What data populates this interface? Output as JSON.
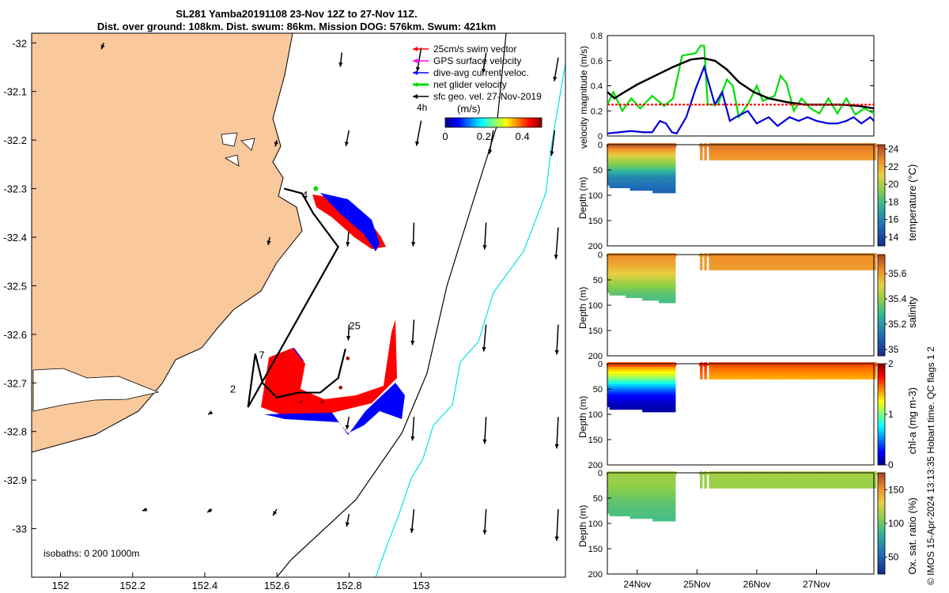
{
  "header": {
    "title_line1": "SL281 Yamba20191108 23-Nov 12Z to 27-Nov 11Z.",
    "title_line2": "Dist. over ground: 108km. Dist. swum: 86km. Mission DOG: 576km. Swum: 421km"
  },
  "credit": "© IMOS 15-Apr-2024 13:13:35 Hobart time. QC flags 1 2",
  "colors": {
    "land": "#f9c89b",
    "swim_vector": "#ff0000",
    "gps_velocity": "#ff00ff",
    "current": "#0000ff",
    "net_velocity": "#00dd00",
    "geostrophic": "#000000",
    "isobath_200": "#000000",
    "isobath_1000": "#00e5e5"
  },
  "chart_data": [
    {
      "type": "map",
      "title": "",
      "x_ticks": [
        "152",
        "152.2",
        "152.4",
        "152.6",
        "152.8",
        "153"
      ],
      "y_ticks": [
        "-32",
        "-32.1",
        "-32.2",
        "-32.3",
        "-32.4",
        "-32.5",
        "-32.6",
        "-32.7",
        "-32.8",
        "-32.9",
        "-33"
      ],
      "xlim": [
        151.92,
        153.4
      ],
      "ylim": [
        -33.1,
        -31.98
      ],
      "legend": {
        "placement": "top-right",
        "entries": [
          "25cm/s swim vector",
          "GPS surface velocity",
          "dive-avg current veloc.",
          "net glider velocity",
          "sfc geo. vel. 27-Nov-2019"
        ],
        "interval_label": "4h"
      },
      "colorbar": {
        "label": "(m/s)",
        "ticks": [
          "0",
          "0.2",
          "0.4"
        ],
        "range": [
          0,
          0.5
        ]
      },
      "isobath_label": "isobaths: 0   200  1000m",
      "track_labels": [
        {
          "text": "4",
          "lon": 152.67,
          "lat": -32.32
        },
        {
          "text": "25",
          "lon": 152.8,
          "lat": -32.59
        },
        {
          "text": "7",
          "lon": 152.55,
          "lat": -32.65
        },
        {
          "text": "2",
          "lon": 152.47,
          "lat": -32.72
        }
      ],
      "glider_track": [
        [
          152.62,
          -32.3
        ],
        [
          152.67,
          -32.31
        ],
        [
          152.7,
          -32.35
        ],
        [
          152.74,
          -32.39
        ],
        [
          152.77,
          -32.42
        ],
        [
          152.52,
          -32.75
        ],
        [
          152.54,
          -32.64
        ],
        [
          152.56,
          -32.7
        ],
        [
          152.6,
          -32.73
        ],
        [
          152.66,
          -32.72
        ],
        [
          152.72,
          -32.72
        ],
        [
          152.77,
          -32.69
        ],
        [
          152.79,
          -32.63
        ]
      ],
      "geostrophic_arrows": [
        {
          "lon": 152.12,
          "lat": -32.0,
          "u": -0.03,
          "v": -0.08
        },
        {
          "lon": 152.78,
          "lat": -32.02,
          "u": -0.02,
          "v": -0.18
        },
        {
          "lon": 153.0,
          "lat": -32.01,
          "u": -0.05,
          "v": -0.3
        },
        {
          "lon": 153.18,
          "lat": -32.02,
          "u": -0.04,
          "v": -0.26
        },
        {
          "lon": 153.38,
          "lat": -32.03,
          "u": -0.05,
          "v": -0.3
        },
        {
          "lon": 152.6,
          "lat": -32.2,
          "u": -0.02,
          "v": -0.08
        },
        {
          "lon": 152.8,
          "lat": -32.18,
          "u": -0.04,
          "v": -0.2
        },
        {
          "lon": 153.0,
          "lat": -32.16,
          "u": -0.06,
          "v": -0.32
        },
        {
          "lon": 153.2,
          "lat": -32.18,
          "u": -0.05,
          "v": -0.3
        },
        {
          "lon": 153.37,
          "lat": -32.18,
          "u": -0.04,
          "v": -0.32
        },
        {
          "lon": 152.58,
          "lat": -32.4,
          "u": -0.02,
          "v": -0.1
        },
        {
          "lon": 152.8,
          "lat": -32.38,
          "u": -0.02,
          "v": -0.24
        },
        {
          "lon": 152.98,
          "lat": -32.37,
          "u": -0.01,
          "v": -0.3
        },
        {
          "lon": 153.18,
          "lat": -32.37,
          "u": -0.02,
          "v": -0.34
        },
        {
          "lon": 153.38,
          "lat": -32.38,
          "u": -0.03,
          "v": -0.4
        },
        {
          "lon": 152.8,
          "lat": -32.58,
          "u": -0.01,
          "v": -0.2
        },
        {
          "lon": 152.98,
          "lat": -32.57,
          "u": -0.02,
          "v": -0.32
        },
        {
          "lon": 153.18,
          "lat": -32.58,
          "u": -0.03,
          "v": -0.34
        },
        {
          "lon": 153.38,
          "lat": -32.58,
          "u": -0.02,
          "v": -0.38
        },
        {
          "lon": 152.42,
          "lat": -32.76,
          "u": -0.05,
          "v": -0.03
        },
        {
          "lon": 152.62,
          "lat": -32.76,
          "u": -0.04,
          "v": -0.08
        },
        {
          "lon": 152.8,
          "lat": -32.77,
          "u": -0.03,
          "v": -0.16
        },
        {
          "lon": 152.98,
          "lat": -32.77,
          "u": -0.02,
          "v": -0.3
        },
        {
          "lon": 153.18,
          "lat": -32.77,
          "u": -0.02,
          "v": -0.34
        },
        {
          "lon": 153.38,
          "lat": -32.77,
          "u": -0.02,
          "v": -0.4
        },
        {
          "lon": 152.24,
          "lat": -32.96,
          "u": -0.06,
          "v": -0.02
        },
        {
          "lon": 152.42,
          "lat": -32.96,
          "u": -0.06,
          "v": -0.04
        },
        {
          "lon": 152.6,
          "lat": -32.96,
          "u": -0.05,
          "v": -0.08
        },
        {
          "lon": 152.8,
          "lat": -32.97,
          "u": -0.03,
          "v": -0.16
        },
        {
          "lon": 152.98,
          "lat": -32.96,
          "u": -0.03,
          "v": -0.3
        },
        {
          "lon": 153.18,
          "lat": -32.96,
          "u": -0.02,
          "v": -0.32
        },
        {
          "lon": 153.38,
          "lat": -32.96,
          "u": -0.02,
          "v": -0.4
        }
      ]
    },
    {
      "type": "line",
      "ylabel": "velocity magnitude (m/s)",
      "ylim": [
        0,
        0.8
      ],
      "y_ticks": [
        "0",
        "0.2",
        "0.4",
        "0.6",
        "0.8"
      ],
      "x_days": [
        23.5,
        27.96
      ],
      "series": [
        {
          "color": "#00dd00",
          "points": [
            [
              23.5,
              0.25
            ],
            [
              23.6,
              0.35
            ],
            [
              23.75,
              0.2
            ],
            [
              23.9,
              0.3
            ],
            [
              24.05,
              0.22
            ],
            [
              24.25,
              0.32
            ],
            [
              24.45,
              0.24
            ],
            [
              24.6,
              0.3
            ],
            [
              24.75,
              0.64
            ],
            [
              24.98,
              0.66
            ],
            [
              25.06,
              0.72
            ],
            [
              25.12,
              0.72
            ],
            [
              25.18,
              0.25
            ],
            [
              25.35,
              0.25
            ],
            [
              25.5,
              0.45
            ],
            [
              25.6,
              0.4
            ],
            [
              25.7,
              0.15
            ],
            [
              25.85,
              0.25
            ],
            [
              26.0,
              0.4
            ],
            [
              26.1,
              0.28
            ],
            [
              26.3,
              0.32
            ],
            [
              26.4,
              0.48
            ],
            [
              26.5,
              0.42
            ],
            [
              26.62,
              0.2
            ],
            [
              26.75,
              0.3
            ],
            [
              26.9,
              0.22
            ],
            [
              27.05,
              0.18
            ],
            [
              27.2,
              0.3
            ],
            [
              27.35,
              0.18
            ],
            [
              27.5,
              0.3
            ],
            [
              27.65,
              0.17
            ],
            [
              27.8,
              0.22
            ],
            [
              27.96,
              0.18
            ]
          ]
        },
        {
          "color": "#0000dd",
          "points": [
            [
              23.5,
              0.02
            ],
            [
              23.7,
              0.03
            ],
            [
              23.9,
              0.04
            ],
            [
              24.1,
              0.03
            ],
            [
              24.25,
              0.03
            ],
            [
              24.38,
              0.12
            ],
            [
              24.48,
              0.1
            ],
            [
              24.58,
              0.03
            ],
            [
              24.66,
              0.02
            ],
            [
              24.82,
              0.15
            ],
            [
              24.98,
              0.38
            ],
            [
              25.12,
              0.55
            ],
            [
              25.3,
              0.25
            ],
            [
              25.42,
              0.35
            ],
            [
              25.55,
              0.12
            ],
            [
              25.65,
              0.15
            ],
            [
              25.85,
              0.2
            ],
            [
              26.0,
              0.1
            ],
            [
              26.2,
              0.15
            ],
            [
              26.35,
              0.08
            ],
            [
              26.55,
              0.15
            ],
            [
              26.7,
              0.12
            ],
            [
              26.85,
              0.15
            ],
            [
              27.0,
              0.12
            ],
            [
              27.2,
              0.1
            ],
            [
              27.35,
              0.1
            ],
            [
              27.5,
              0.12
            ],
            [
              27.62,
              0.15
            ],
            [
              27.75,
              0.1
            ],
            [
              27.9,
              0.15
            ],
            [
              27.96,
              0.12
            ]
          ]
        },
        {
          "color": "#000000",
          "points": [
            [
              23.5,
              0.35
            ],
            [
              23.62,
              0.3
            ],
            [
              23.75,
              0.34
            ],
            [
              24.0,
              0.41
            ],
            [
              24.3,
              0.48
            ],
            [
              24.6,
              0.55
            ],
            [
              24.9,
              0.61
            ],
            [
              25.1,
              0.62
            ],
            [
              25.3,
              0.6
            ],
            [
              25.5,
              0.53
            ],
            [
              25.7,
              0.43
            ],
            [
              25.95,
              0.35
            ],
            [
              26.2,
              0.3
            ],
            [
              26.5,
              0.27
            ],
            [
              26.8,
              0.25
            ],
            [
              27.1,
              0.25
            ],
            [
              27.4,
              0.25
            ],
            [
              27.7,
              0.24
            ],
            [
              27.96,
              0.22
            ]
          ]
        },
        {
          "color": "#ff0000",
          "points": [
            [
              23.5,
              0.25
            ],
            [
              24.6,
              0.25
            ],
            [
              24.9,
              0.25
            ],
            [
              25.6,
              0.25
            ],
            [
              26.6,
              0.25
            ],
            [
              27.96,
              0.25
            ]
          ]
        }
      ]
    },
    {
      "type": "heatmap",
      "ylabel": "Depth (m)",
      "y_ticks": [
        "0",
        "50",
        "100",
        "150",
        "200"
      ],
      "ylim": [
        0,
        200
      ],
      "colorbar_label": "temperature (°C)",
      "colorbar_ticks": [
        "14",
        "16",
        "18",
        "20",
        "22",
        "24"
      ],
      "colorbar_range": [
        13,
        24.5
      ],
      "segments": [
        {
          "day_start": 23.5,
          "day_end": 24.6,
          "max_depth_start": 80,
          "max_depth_end": 95,
          "profile": [
            [
              0,
              23.5
            ],
            [
              10,
              22.5
            ],
            [
              25,
              20.5
            ],
            [
              45,
              18.5
            ],
            [
              65,
              16
            ],
            [
              90,
              15
            ]
          ]
        },
        {
          "day_start": 25.05,
          "day_end": 25.12,
          "max_depth_start": 30,
          "max_depth_end": 30,
          "profile": [
            [
              0,
              23
            ],
            [
              30,
              22.5
            ]
          ]
        },
        {
          "day_start": 25.2,
          "day_end": 27.96,
          "max_depth_start": 30,
          "max_depth_end": 30,
          "profile": [
            [
              0,
              23.2
            ],
            [
              15,
              22.8
            ],
            [
              30,
              22.2
            ]
          ]
        }
      ]
    },
    {
      "type": "heatmap",
      "ylabel": "Depth (m)",
      "y_ticks": [
        "0",
        "50",
        "100",
        "150",
        "200"
      ],
      "ylim": [
        0,
        200
      ],
      "colorbar_label": "salinity",
      "colorbar_ticks": [
        "35",
        "35.2",
        "35.4",
        "35.6"
      ],
      "colorbar_range": [
        34.95,
        35.75
      ],
      "segments": [
        {
          "day_start": 23.5,
          "day_end": 24.6,
          "max_depth_start": 75,
          "max_depth_end": 95,
          "profile": [
            [
              0,
              35.62
            ],
            [
              20,
              35.58
            ],
            [
              40,
              35.5
            ],
            [
              60,
              35.4
            ],
            [
              80,
              35.32
            ],
            [
              95,
              35.3
            ]
          ]
        },
        {
          "day_start": 25.05,
          "day_end": 25.12,
          "max_depth_start": 30,
          "max_depth_end": 30,
          "profile": [
            [
              0,
              35.6
            ],
            [
              30,
              35.6
            ]
          ]
        },
        {
          "day_start": 25.2,
          "day_end": 27.96,
          "max_depth_start": 30,
          "max_depth_end": 30,
          "profile": [
            [
              0,
              35.62
            ],
            [
              30,
              35.6
            ]
          ]
        }
      ]
    },
    {
      "type": "heatmap",
      "ylabel": "Depth (m)",
      "y_ticks": [
        "0",
        "50",
        "100",
        "150",
        "200"
      ],
      "ylim": [
        0,
        200
      ],
      "colorbar_label": "chl-a (mg m-3)",
      "colorbar_ticks": [
        "0",
        "1",
        "2"
      ],
      "colorbar_range": [
        0,
        2
      ],
      "segments": [
        {
          "day_start": 23.5,
          "day_end": 24.6,
          "max_depth_start": 85,
          "max_depth_end": 95,
          "profile": [
            [
              0,
              1.6
            ],
            [
              15,
              1.3
            ],
            [
              30,
              1.0
            ],
            [
              45,
              0.6
            ],
            [
              60,
              0.3
            ],
            [
              80,
              0.1
            ],
            [
              95,
              0.05
            ]
          ]
        },
        {
          "day_start": 25.05,
          "day_end": 25.12,
          "max_depth_start": 30,
          "max_depth_end": 30,
          "profile": [
            [
              0,
              1.7
            ],
            [
              30,
              1.5
            ]
          ]
        },
        {
          "day_start": 25.2,
          "day_end": 27.96,
          "max_depth_start": 30,
          "max_depth_end": 30,
          "profile": [
            [
              0,
              1.6
            ],
            [
              15,
              1.5
            ],
            [
              30,
              1.4
            ]
          ]
        }
      ]
    },
    {
      "type": "heatmap",
      "ylabel": "Depth (m)",
      "y_ticks": [
        "0",
        "50",
        "100",
        "150",
        "200"
      ],
      "ylim": [
        0,
        200
      ],
      "colorbar_label": "Ox. sat. ratio (%)",
      "colorbar_ticks": [
        "50",
        "100",
        "150"
      ],
      "colorbar_range": [
        25,
        175
      ],
      "x_ticks": [
        "24Nov",
        "25Nov",
        "26Nov",
        "27Nov"
      ],
      "segments": [
        {
          "day_start": 23.5,
          "day_end": 24.6,
          "max_depth_start": 80,
          "max_depth_end": 95,
          "profile": [
            [
              0,
              112
            ],
            [
              20,
              110
            ],
            [
              40,
              104
            ],
            [
              60,
              96
            ],
            [
              85,
              92
            ],
            [
              95,
              90
            ]
          ]
        },
        {
          "day_start": 25.05,
          "day_end": 25.12,
          "max_depth_start": 30,
          "max_depth_end": 30,
          "profile": [
            [
              0,
              112
            ],
            [
              30,
              110
            ]
          ]
        },
        {
          "day_start": 25.2,
          "day_end": 27.96,
          "max_depth_start": 30,
          "max_depth_end": 30,
          "profile": [
            [
              0,
              113
            ],
            [
              30,
              110
            ]
          ]
        }
      ]
    }
  ]
}
